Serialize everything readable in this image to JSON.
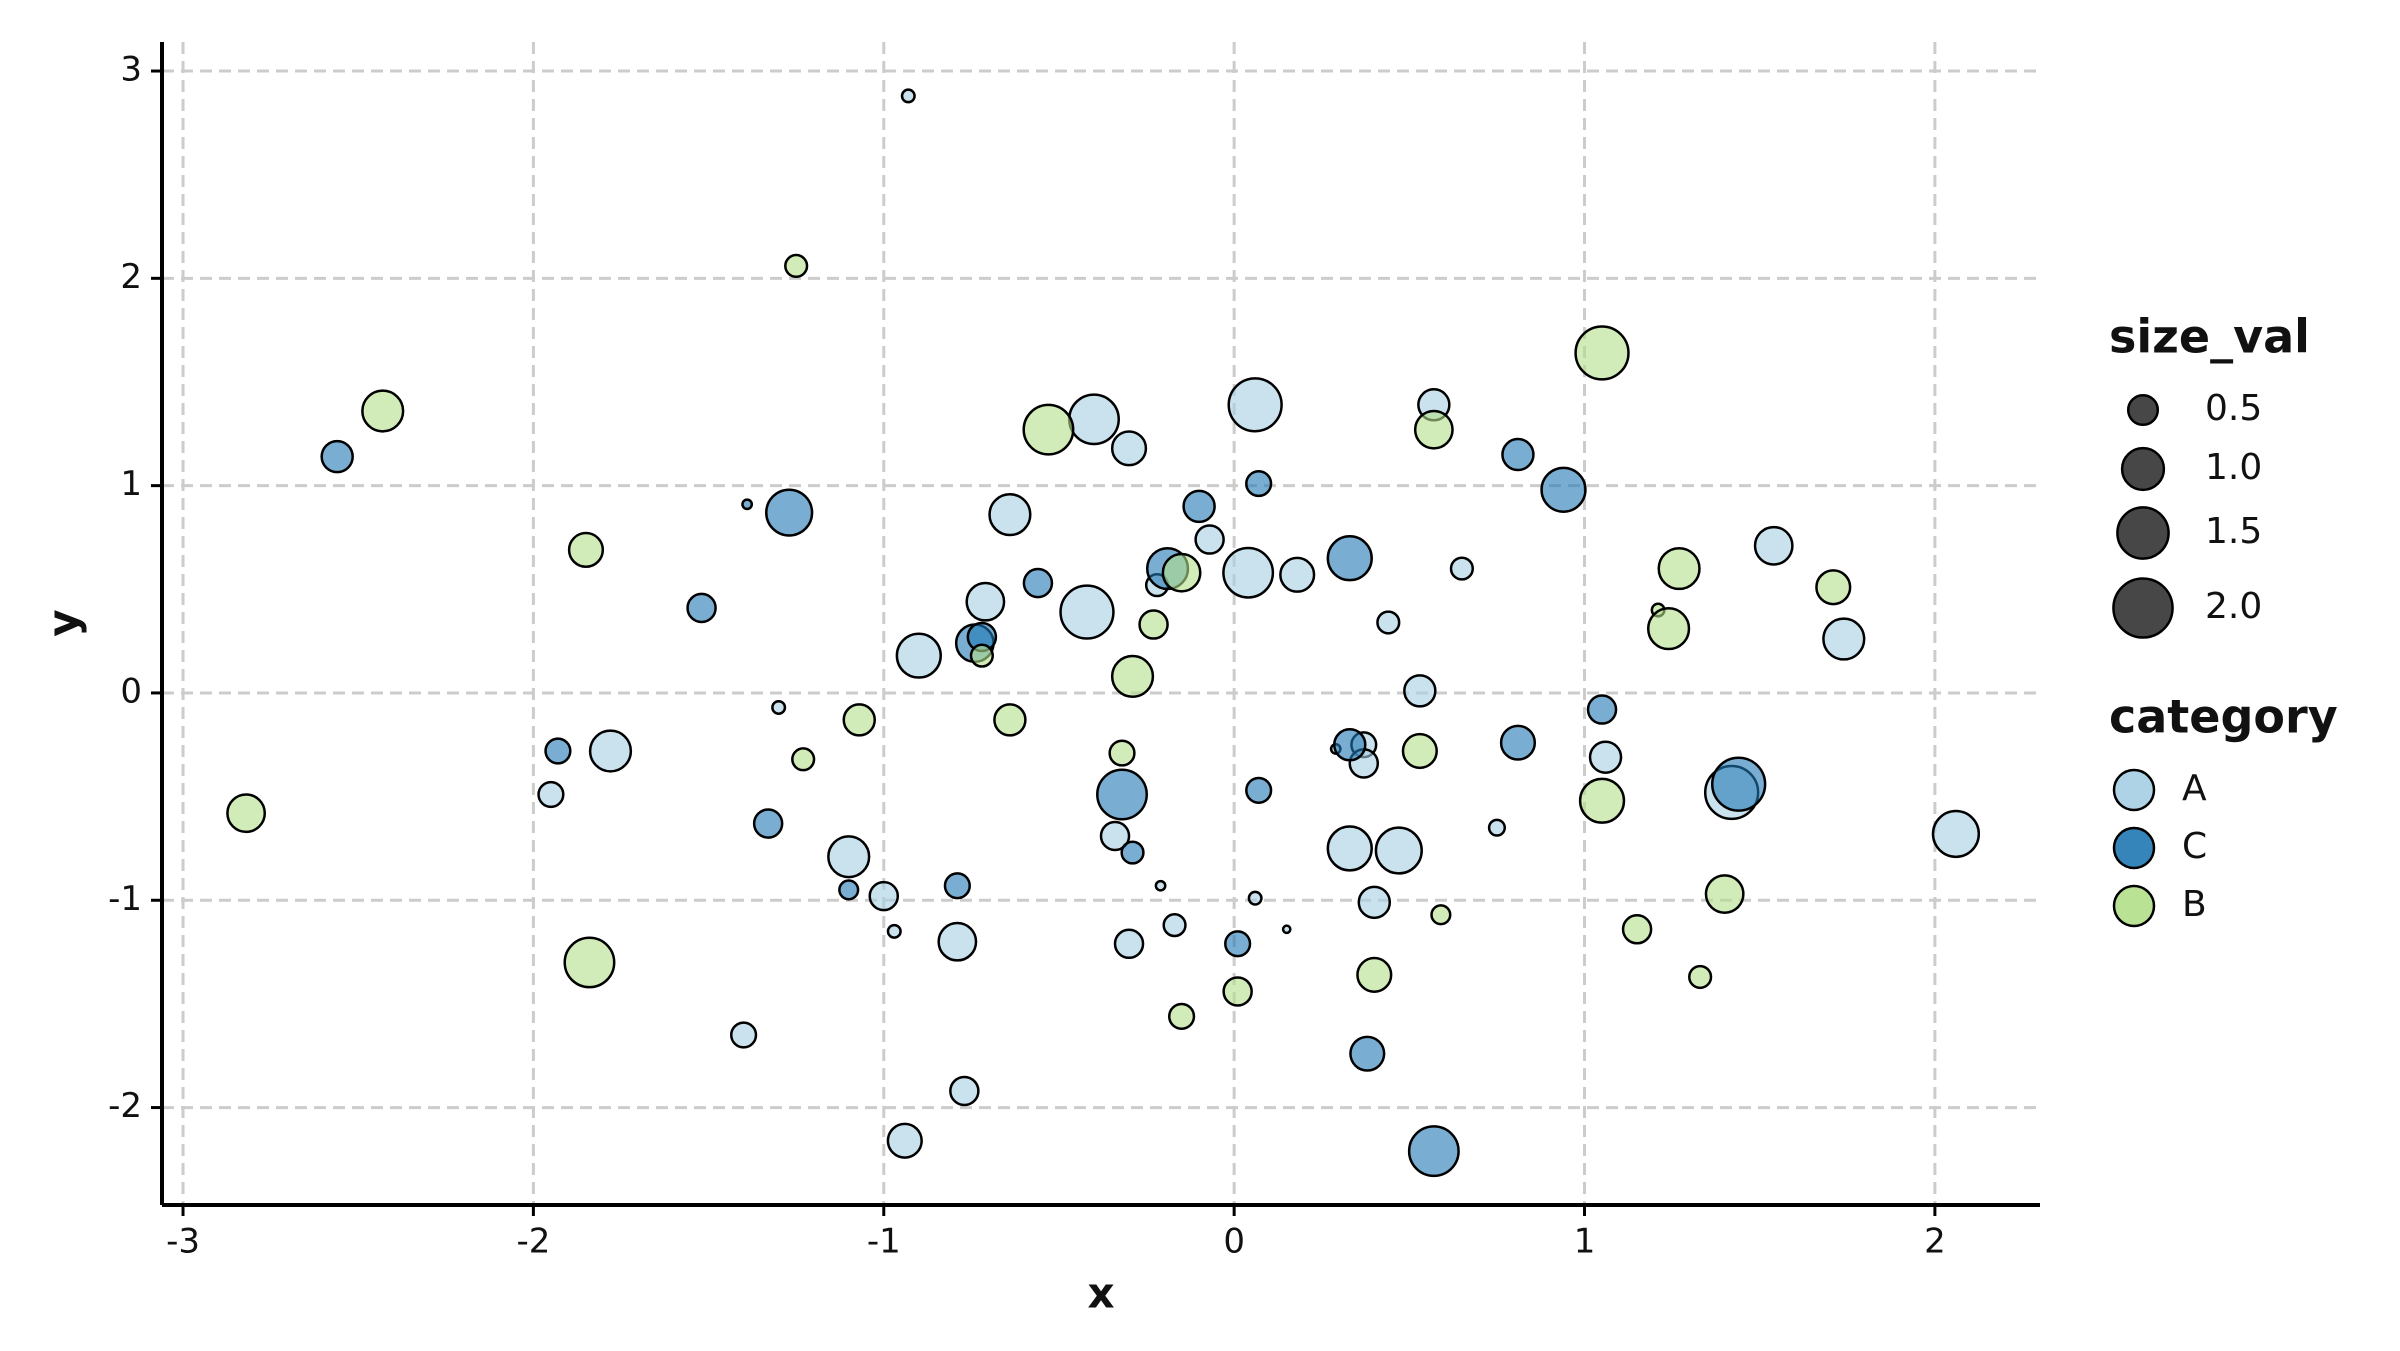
{
  "chart_data": {
    "type": "scatter",
    "x_label": "x",
    "y_label": "y",
    "xlim": [
      -3.06,
      2.3
    ],
    "ylim": [
      -2.47,
      3.14
    ],
    "xticks": [
      -3,
      -2,
      -1,
      0,
      1,
      2
    ],
    "yticks": [
      -2,
      -1,
      0,
      1,
      2,
      3
    ],
    "grid": true,
    "size_legend": {
      "title": "size_val",
      "values": [
        0.5,
        {
          "value": 1,
          "label": "1.0"
        },
        1.5,
        {
          "value": 2,
          "label": "2.0"
        }
      ]
    },
    "legend_title": "category",
    "series": [
      {
        "name": "A",
        "color": "#a6cee3",
        "x": [
          -1.78,
          -1.95,
          -1.4,
          -1.3,
          -1.1,
          -1.0,
          -0.97,
          -0.94,
          -0.93,
          -0.9,
          -0.79,
          -0.77,
          -0.71,
          -0.64,
          -0.42,
          -0.4,
          -0.34,
          -0.3,
          -0.3,
          -0.22,
          -0.21,
          -0.17,
          -0.07,
          0.04,
          0.06,
          0.06,
          0.15,
          0.18,
          0.29,
          0.33,
          0.37,
          0.37,
          0.4,
          0.44,
          0.47,
          0.53,
          0.57,
          0.65,
          0.75,
          1.06,
          1.42,
          1.54,
          1.74,
          2.06
        ],
        "y": [
          -0.28,
          -0.49,
          -1.65,
          -0.07,
          -0.79,
          -0.98,
          -1.15,
          -2.16,
          2.88,
          0.18,
          -1.2,
          -1.92,
          0.44,
          0.86,
          0.39,
          1.32,
          -0.69,
          1.18,
          -1.21,
          0.52,
          -0.93,
          -1.12,
          0.74,
          0.58,
          -0.99,
          1.39,
          -1.14,
          0.57,
          -0.27,
          -0.75,
          -0.25,
          -0.34,
          -1.01,
          0.34,
          -0.76,
          0.01,
          1.39,
          0.6,
          -0.65,
          -0.31,
          -0.48,
          0.71,
          0.26,
          -0.68
        ],
        "size": [
          0.95,
          0.35,
          0.35,
          0.09,
          0.95,
          0.45,
          0.09,
          0.65,
          0.09,
          1.1,
          0.8,
          0.45,
          0.8,
          0.95,
          1.6,
          1.4,
          0.45,
          0.65,
          0.45,
          0.27,
          0.05,
          0.27,
          0.45,
          1.4,
          0.09,
          1.6,
          0.03,
          0.65,
          0.05,
          1.1,
          0.35,
          0.45,
          0.55,
          0.27,
          1.2,
          0.55,
          0.55,
          0.27,
          0.14,
          0.55,
          1.6,
          0.8,
          0.95,
          1.2
        ]
      },
      {
        "name": "C",
        "color": "#1f78b4",
        "x": [
          -2.56,
          -1.93,
          -1.52,
          -1.39,
          -1.27,
          -1.33,
          -1.1,
          -0.79,
          -0.74,
          -0.72,
          -0.56,
          -0.32,
          -0.29,
          -0.19,
          -0.1,
          0.01,
          0.07,
          0.07,
          0.33,
          0.33,
          0.38,
          0.57,
          0.81,
          0.81,
          0.94,
          1.05,
          1.44
        ],
        "y": [
          1.14,
          -0.28,
          0.41,
          0.91,
          0.87,
          -0.63,
          -0.95,
          -0.93,
          0.24,
          0.27,
          0.53,
          -0.49,
          -0.77,
          0.6,
          0.9,
          -1.21,
          1.01,
          -0.47,
          0.65,
          -0.25,
          -1.74,
          -2.21,
          1.15,
          -0.24,
          0.98,
          -0.08,
          -0.44
        ],
        "size": [
          0.55,
          0.35,
          0.45,
          0.05,
          1.2,
          0.45,
          0.2,
          0.35,
          0.8,
          0.45,
          0.45,
          1.4,
          0.27,
          0.95,
          0.55,
          0.35,
          0.35,
          0.35,
          1.1,
          0.55,
          0.65,
          1.4,
          0.55,
          0.65,
          1.1,
          0.45,
          1.6
        ]
      },
      {
        "name": "B",
        "color": "#b2df8a",
        "x": [
          -2.82,
          -2.43,
          -1.85,
          -1.84,
          -1.25,
          -1.23,
          -1.07,
          -0.72,
          -0.64,
          -0.53,
          -0.32,
          -0.29,
          -0.23,
          -0.15,
          -0.15,
          0.01,
          0.4,
          0.53,
          0.57,
          0.59,
          1.05,
          1.05,
          1.15,
          1.21,
          1.24,
          1.27,
          1.33,
          1.4,
          1.71
        ],
        "y": [
          -0.58,
          1.36,
          0.69,
          -1.3,
          2.06,
          -0.32,
          -0.13,
          0.18,
          -0.13,
          1.27,
          -0.29,
          0.08,
          0.33,
          -1.56,
          0.58,
          -1.44,
          -1.36,
          -0.28,
          1.27,
          -1.07,
          1.64,
          -0.52,
          -1.14,
          0.4,
          0.31,
          0.6,
          -1.37,
          -0.97,
          0.51
        ],
        "size": [
          0.8,
          0.95,
          0.65,
          1.4,
          0.27,
          0.27,
          0.55,
          0.27,
          0.55,
          1.4,
          0.35,
          0.95,
          0.45,
          0.35,
          0.8,
          0.45,
          0.65,
          0.65,
          0.8,
          0.2,
          1.6,
          1.1,
          0.45,
          0.09,
          0.95,
          0.95,
          0.27,
          0.8,
          0.65
        ]
      }
    ]
  }
}
